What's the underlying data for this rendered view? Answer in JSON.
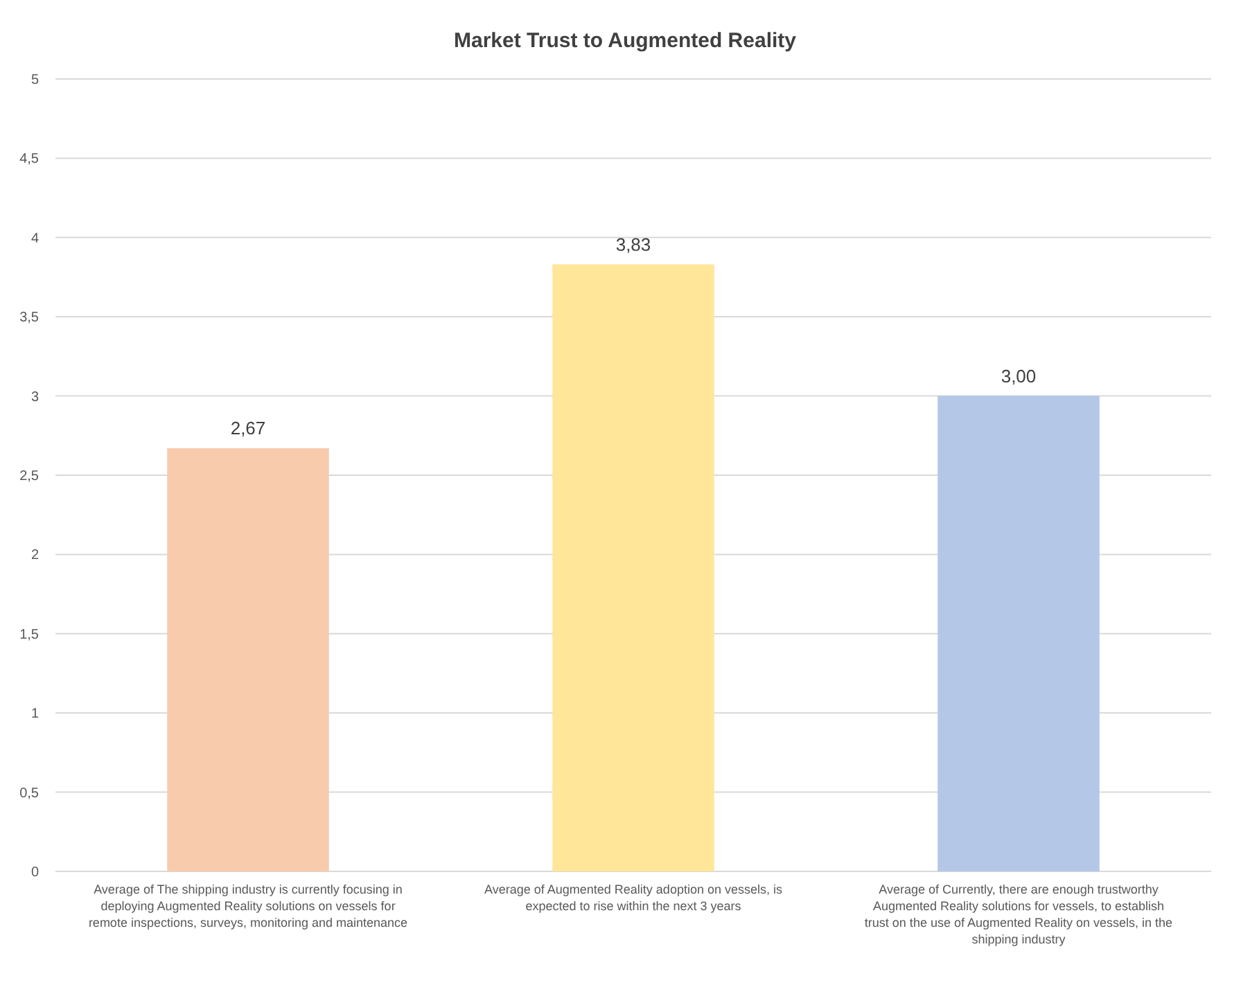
{
  "chart_data": {
    "type": "bar",
    "title": "Market Trust to Augmented Reality",
    "categories": [
      "Average of The shipping industry is currently focusing in deploying Augmented Reality solutions on vessels for remote inspections, surveys, monitoring and maintenance",
      "Average of Augmented Reality adoption on vessels, is expected to rise within the next 3 years",
      "Average of Currently, there are enough trustworthy Augmented Reality solutions for vessels, to establish trust on the use of Augmented Reality on vessels, in the shipping industry"
    ],
    "values": [
      2.67,
      3.83,
      3.0
    ],
    "colors": [
      "#f8cbad",
      "#ffe699",
      "#b4c7e7"
    ],
    "value_labels": [
      "2,67",
      "3,83",
      "3,00"
    ],
    "ylim": [
      0,
      5
    ],
    "yticks": [
      0,
      {
        "value": 0.5,
        "label": "0,5"
      },
      1,
      {
        "value": 1.5,
        "label": "1,5"
      },
      2,
      {
        "value": 2.5,
        "label": "2,5"
      },
      3,
      {
        "value": 3.5,
        "label": "3,5"
      },
      4,
      {
        "value": 4.5,
        "label": "4,5"
      },
      5
    ],
    "grid": "y"
  }
}
